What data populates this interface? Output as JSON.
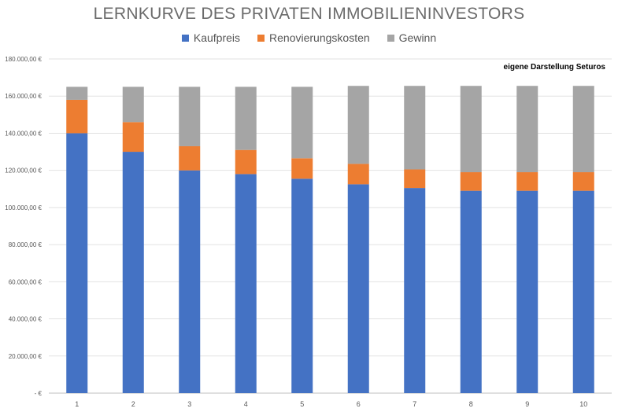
{
  "chart_data": {
    "type": "bar",
    "stacked": true,
    "title": "LERNKURVE DES PRIVATEN IMMOBILIENINVESTORS",
    "annotation": "eigene Darstellung Seturos",
    "categories": [
      "1",
      "2",
      "3",
      "4",
      "5",
      "6",
      "7",
      "8",
      "9",
      "10"
    ],
    "series": [
      {
        "name": "Kaufpreis",
        "color": "#4472c4",
        "values": [
          140000,
          130000,
          120000,
          118000,
          115500,
          112500,
          110500,
          109000,
          109000,
          109000
        ]
      },
      {
        "name": "Renovierungskosten",
        "color": "#ed7d31",
        "values": [
          18000,
          16000,
          13000,
          13000,
          11000,
          11000,
          10000,
          10000,
          10000,
          10000
        ]
      },
      {
        "name": "Gewinn",
        "color": "#a5a5a5",
        "values": [
          7000,
          19000,
          32000,
          34000,
          38500,
          42000,
          45000,
          46500,
          46500,
          46500
        ]
      }
    ],
    "ylim": [
      0,
      180000
    ],
    "yticks": [
      "-  €",
      "20.000,00 €",
      "40.000,00 €",
      "60.000,00 €",
      "80.000,00 €",
      "100.000,00 €",
      "120.000,00 €",
      "140.000,00 €",
      "160.000,00 €",
      "180.000,00 €"
    ],
    "grid": true,
    "legend_position": "top"
  }
}
